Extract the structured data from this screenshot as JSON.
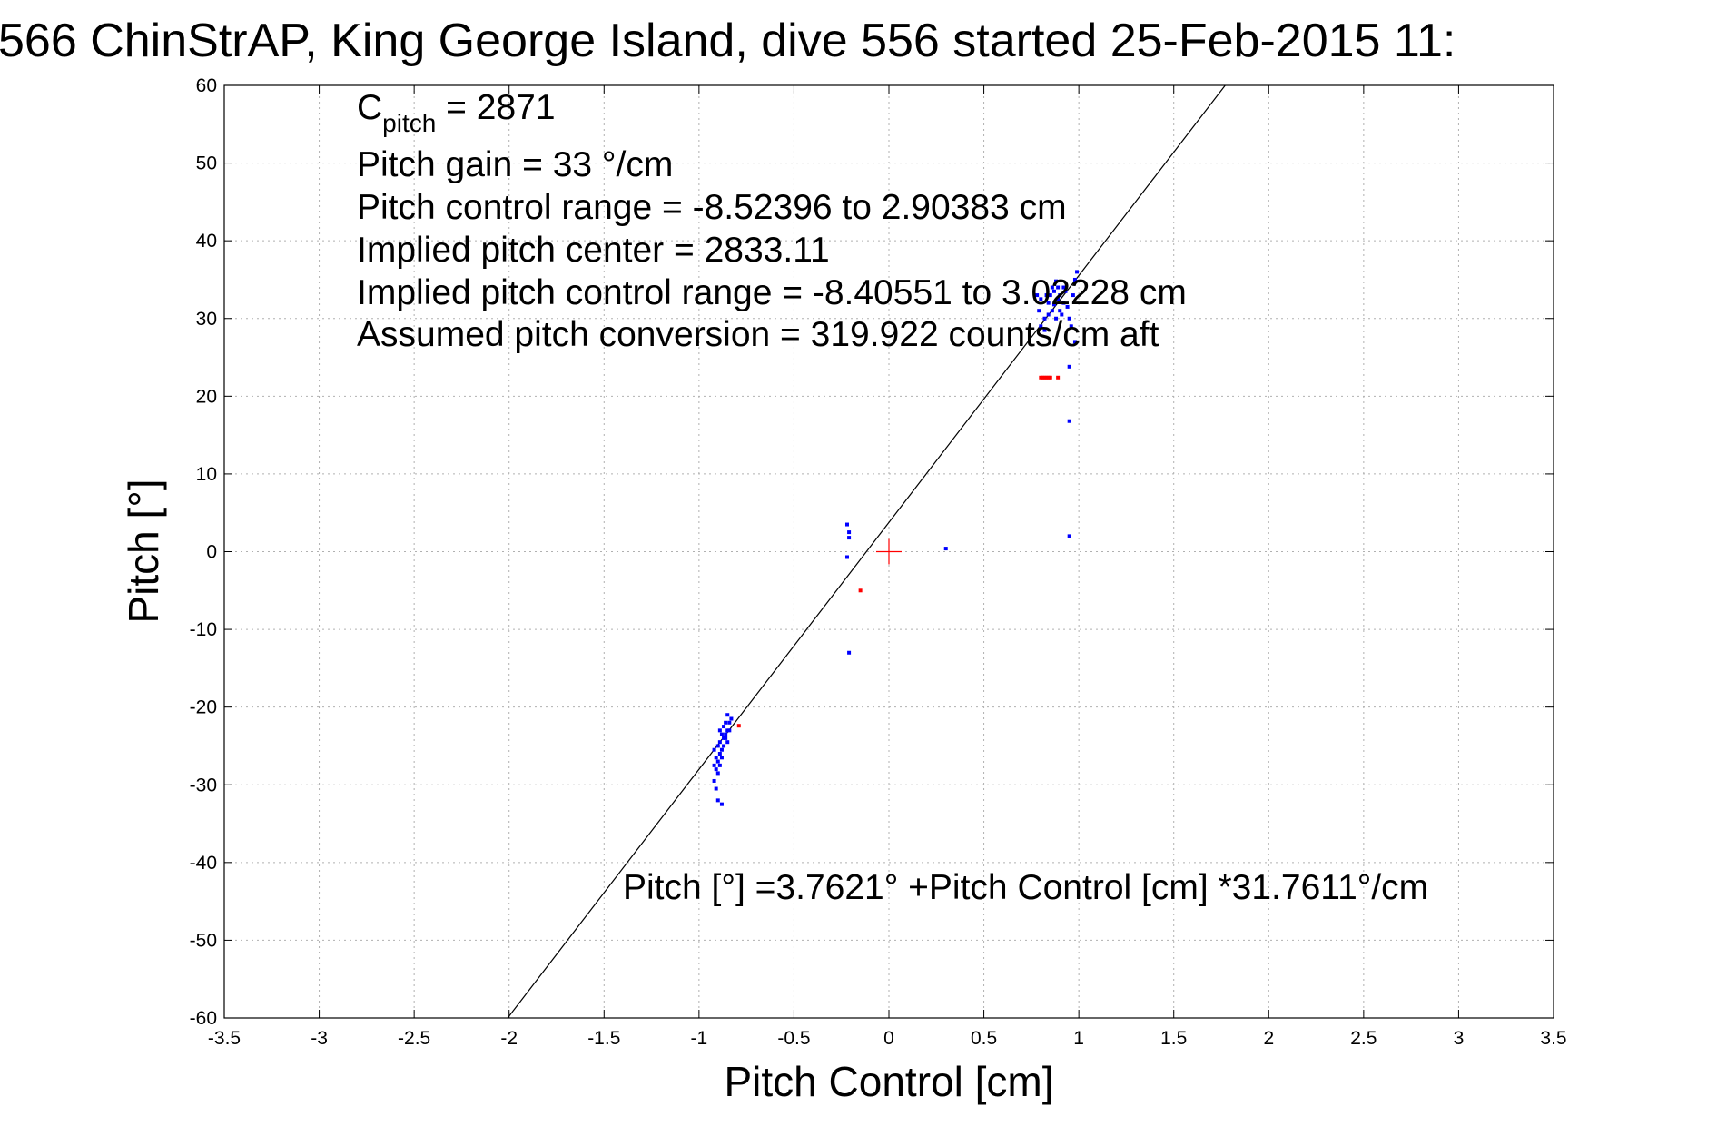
{
  "title": "566 ChinStrAP, King George Island, dive 556 started 25-Feb-2015 11:",
  "chart_data": {
    "type": "scatter",
    "title": "566 ChinStrAP, King George Island, dive 556 started 25-Feb-2015 11:",
    "xlabel": "Pitch Control [cm]",
    "ylabel": "Pitch [°]",
    "xlim": [
      -3.5,
      3.5
    ],
    "ylim": [
      -60,
      60
    ],
    "xticks": [
      -3.5,
      -3,
      -2.5,
      -2,
      -1.5,
      -1,
      -0.5,
      0,
      0.5,
      1,
      1.5,
      2,
      2.5,
      3,
      3.5
    ],
    "xtick_labels": [
      "-3.5",
      "-3",
      "-2.5",
      "-2",
      "-1.5",
      "-1",
      "-0.5",
      "0",
      "0.5",
      "1",
      "1.5",
      "2",
      "2.5",
      "3",
      "3.5"
    ],
    "yticks": [
      -60,
      -50,
      -40,
      -30,
      -20,
      -10,
      0,
      10,
      20,
      30,
      40,
      50,
      60
    ],
    "ytick_labels": [
      "-60",
      "-50",
      "-40",
      "-30",
      "-20",
      "-10",
      "0",
      "10",
      "20",
      "30",
      "40",
      "50",
      "60"
    ],
    "grid": true,
    "fit_line": {
      "intercept": 3.7621,
      "slope": 31.7611,
      "color": "#000000"
    },
    "center_marker": {
      "x": 0,
      "y": 0,
      "color": "#ff0000"
    },
    "series": [
      {
        "color": "#0000ff",
        "points": [
          [
            -0.92,
            -29.5
          ],
          [
            -0.91,
            -28.0
          ],
          [
            -0.9,
            -27.0
          ],
          [
            -0.89,
            -26.0
          ],
          [
            -0.88,
            -25.5
          ],
          [
            -0.87,
            -25.0
          ],
          [
            -0.86,
            -24.0
          ],
          [
            -0.85,
            -23.0
          ],
          [
            -0.84,
            -22.0
          ],
          [
            -0.83,
            -21.5
          ],
          [
            -0.91,
            -26.5
          ],
          [
            -0.9,
            -25.0
          ],
          [
            -0.89,
            -24.5
          ],
          [
            -0.88,
            -23.5
          ],
          [
            -0.87,
            -22.5
          ],
          [
            -0.86,
            -22.0
          ],
          [
            -0.85,
            -21.0
          ],
          [
            -0.92,
            -27.5
          ],
          [
            -0.9,
            -28.5
          ],
          [
            -0.89,
            -27.5
          ],
          [
            -0.88,
            -26.5
          ],
          [
            -0.87,
            -24.0
          ],
          [
            -0.86,
            -23.5
          ],
          [
            -0.85,
            -24.5
          ],
          [
            -0.84,
            -23.0
          ],
          [
            -0.91,
            -30.5
          ],
          [
            -0.9,
            -32.0
          ],
          [
            -0.88,
            -32.5
          ],
          [
            -0.92,
            -25.5
          ],
          [
            -0.89,
            -23.0
          ],
          [
            -0.22,
            3.5
          ],
          [
            -0.21,
            2.5
          ],
          [
            -0.21,
            1.8
          ],
          [
            -0.22,
            -0.7
          ],
          [
            -0.21,
            -13.0
          ],
          [
            0.3,
            0.4
          ],
          [
            0.78,
            33.0
          ],
          [
            0.79,
            31.0
          ],
          [
            0.8,
            29.0
          ],
          [
            0.82,
            30.0
          ],
          [
            0.84,
            32.0
          ],
          [
            0.85,
            33.0
          ],
          [
            0.86,
            34.0
          ],
          [
            0.87,
            33.5
          ],
          [
            0.88,
            34.8
          ],
          [
            0.89,
            32.5
          ],
          [
            0.9,
            31.0
          ],
          [
            0.91,
            30.5
          ],
          [
            0.92,
            32.0
          ],
          [
            0.93,
            33.5
          ],
          [
            0.94,
            31.5
          ],
          [
            0.95,
            30.0
          ],
          [
            0.96,
            29.0
          ],
          [
            0.97,
            33.0
          ],
          [
            0.98,
            35.0
          ],
          [
            0.99,
            36.0
          ],
          [
            0.84,
            30.5
          ],
          [
            0.86,
            31.0
          ],
          [
            0.88,
            30.0
          ],
          [
            0.9,
            33.0
          ],
          [
            0.92,
            34.0
          ],
          [
            0.8,
            32.5
          ],
          [
            0.82,
            28.5
          ],
          [
            0.83,
            33.0
          ],
          [
            0.87,
            31.8
          ],
          [
            0.89,
            34.0
          ],
          [
            0.95,
            23.8
          ],
          [
            0.95,
            16.8
          ],
          [
            0.95,
            2.0
          ],
          [
            0.98,
            27.0
          ]
        ]
      },
      {
        "color": "#ff0000",
        "points": [
          [
            0.8,
            22.4
          ],
          [
            0.81,
            22.4
          ],
          [
            0.82,
            22.4
          ],
          [
            0.83,
            22.4
          ],
          [
            0.84,
            22.4
          ],
          [
            0.85,
            22.4
          ],
          [
            0.89,
            22.4
          ],
          [
            -0.79,
            -22.4
          ],
          [
            -0.15,
            -5.0
          ]
        ]
      }
    ]
  },
  "annotations": {
    "cpitch_main": "C",
    "cpitch_sub": "pitch",
    "cpitch_value": " = 2871",
    "pitch_gain": "Pitch gain = 33 °/cm",
    "control_range": "Pitch control range = -8.52396 to 2.90383 cm",
    "implied_center": "Implied pitch center = 2833.11",
    "implied_range": "Implied pitch control range = -8.40551 to 3.02228 cm",
    "conversion": "Assumed pitch conversion = 319.922 counts/cm aft",
    "fit_equation": "Pitch [°] =3.7621° +Pitch Control [cm] *31.7611°/cm"
  }
}
